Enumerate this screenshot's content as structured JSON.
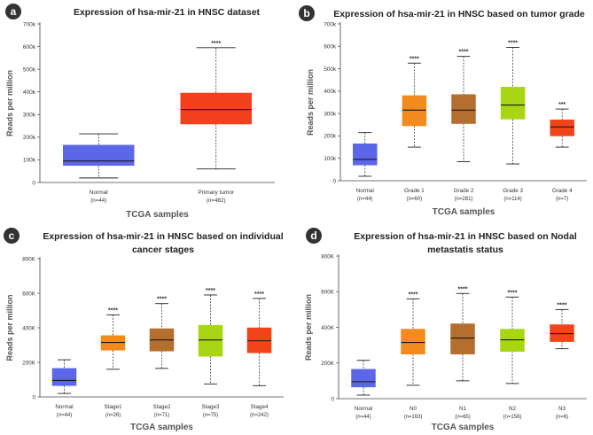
{
  "colors": {
    "normal": "#5B67E8",
    "primary": "#F2411C",
    "orange": "#F28A1E",
    "brown": "#B46E2E",
    "lime": "#A8D612",
    "red": "#F2441B",
    "axis": "#444444",
    "badge": "#333333"
  },
  "chart_data": [
    {
      "type": "box",
      "panel_label": "a",
      "title": [
        "Expression of hsa-mir-21 in HNSC dataset"
      ],
      "xlabel": "TCGA samples",
      "ylabel": "Reads per million",
      "ylim": [
        0,
        700000
      ],
      "yticks": [
        0,
        100000,
        200000,
        300000,
        400000,
        500000,
        600000,
        700000
      ],
      "ytick_labels": [
        "0",
        "100k",
        "200k",
        "300k",
        "400k",
        "500k",
        "600k",
        "700k"
      ],
      "groups": [
        {
          "label": "Normal",
          "n": "(n=44)",
          "color": "normal",
          "whisker_low": 20000,
          "q1": 75000,
          "median": 95000,
          "q3": 165000,
          "whisker_high": 215000,
          "sig": ""
        },
        {
          "label": "Primary tumor",
          "n": "(n=482)",
          "color": "primary",
          "whisker_low": 60000,
          "q1": 258000,
          "median": 322000,
          "q3": 395000,
          "whisker_high": 595000,
          "sig": "****"
        }
      ]
    },
    {
      "type": "box",
      "panel_label": "b",
      "title": [
        "Expression of hsa-mir-21 in HNSC based on tumor grade"
      ],
      "xlabel": "TCGA samples",
      "ylabel": "Reads per million",
      "ylim": [
        0,
        700000
      ],
      "yticks": [
        0,
        100000,
        200000,
        300000,
        400000,
        500000,
        600000,
        700000
      ],
      "ytick_labels": [
        "0",
        "100k",
        "200k",
        "300k",
        "400k",
        "500k",
        "600k",
        "700k"
      ],
      "groups": [
        {
          "label": "Normal",
          "n": "(n=44)",
          "color": "normal",
          "whisker_low": 20000,
          "q1": 70000,
          "median": 95000,
          "q3": 165000,
          "whisker_high": 215000,
          "sig": ""
        },
        {
          "label": "Grade 1",
          "n": "(n=60)",
          "color": "orange",
          "whisker_low": 150000,
          "q1": 245000,
          "median": 315000,
          "q3": 380000,
          "whisker_high": 525000,
          "sig": "****"
        },
        {
          "label": "Grade 2",
          "n": "(n=281)",
          "color": "brown",
          "whisker_low": 85000,
          "q1": 255000,
          "median": 315000,
          "q3": 385000,
          "whisker_high": 555000,
          "sig": "****"
        },
        {
          "label": "Grade 3",
          "n": "(n=114)",
          "color": "lime",
          "whisker_low": 75000,
          "q1": 275000,
          "median": 338000,
          "q3": 418000,
          "whisker_high": 595000,
          "sig": "****"
        },
        {
          "label": "Grade 4",
          "n": "(n=7)",
          "color": "red",
          "whisker_low": 150000,
          "q1": 200000,
          "median": 240000,
          "q3": 272000,
          "whisker_high": 320000,
          "sig": "***"
        }
      ]
    },
    {
      "type": "box",
      "panel_label": "c",
      "title": [
        "Expression of hsa-mir-21 in HNSC based on individual",
        "cancer stages"
      ],
      "xlabel": "TCGA samples",
      "ylabel": "Reads per million",
      "ylim": [
        0,
        800000
      ],
      "yticks": [
        0,
        200000,
        400000,
        600000,
        800000
      ],
      "ytick_labels": [
        "0",
        "200K",
        "400K",
        "600K",
        "800K"
      ],
      "groups": [
        {
          "label": "Normal",
          "n": "(n=44)",
          "color": "normal",
          "whisker_low": 20000,
          "q1": 65000,
          "median": 95000,
          "q3": 165000,
          "whisker_high": 215000,
          "sig": ""
        },
        {
          "label": "Stage1",
          "n": "(n=26)",
          "color": "orange",
          "whisker_low": 160000,
          "q1": 270000,
          "median": 315000,
          "q3": 355000,
          "whisker_high": 475000,
          "sig": "****"
        },
        {
          "label": "Stage2",
          "n": "(n=71)",
          "color": "brown",
          "whisker_low": 165000,
          "q1": 265000,
          "median": 330000,
          "q3": 395000,
          "whisker_high": 540000,
          "sig": "****"
        },
        {
          "label": "Stage3",
          "n": "(n=75)",
          "color": "lime",
          "whisker_low": 75000,
          "q1": 235000,
          "median": 330000,
          "q3": 415000,
          "whisker_high": 590000,
          "sig": "****"
        },
        {
          "label": "Stage4",
          "n": "(n=242)",
          "color": "red",
          "whisker_low": 65000,
          "q1": 255000,
          "median": 325000,
          "q3": 400000,
          "whisker_high": 570000,
          "sig": "****"
        }
      ]
    },
    {
      "type": "box",
      "panel_label": "d",
      "title": [
        "Expression of hsa-mir-21 in HNSC based on Nodal",
        "metastatis status"
      ],
      "xlabel": "TCGA samples",
      "ylabel": "Reads per million",
      "ylim": [
        0,
        800000
      ],
      "yticks": [
        0,
        200000,
        400000,
        600000,
        800000
      ],
      "ytick_labels": [
        "0",
        "200K",
        "400K",
        "600K",
        "800K"
      ],
      "groups": [
        {
          "label": "Normal",
          "n": "(n=44)",
          "color": "normal",
          "whisker_low": 20000,
          "q1": 65000,
          "median": 95000,
          "q3": 165000,
          "whisker_high": 215000,
          "sig": ""
        },
        {
          "label": "N0",
          "n": "(n=163)",
          "color": "orange",
          "whisker_low": 75000,
          "q1": 250000,
          "median": 315000,
          "q3": 390000,
          "whisker_high": 560000,
          "sig": "****"
        },
        {
          "label": "N1",
          "n": "(n=65)",
          "color": "brown",
          "whisker_low": 100000,
          "q1": 250000,
          "median": 340000,
          "q3": 420000,
          "whisker_high": 590000,
          "sig": "****"
        },
        {
          "label": "N2",
          "n": "(n=156)",
          "color": "lime",
          "whisker_low": 85000,
          "q1": 265000,
          "median": 330000,
          "q3": 390000,
          "whisker_high": 570000,
          "sig": "****"
        },
        {
          "label": "N3",
          "n": "(n=6)",
          "color": "red",
          "whisker_low": 280000,
          "q1": 320000,
          "median": 365000,
          "q3": 415000,
          "whisker_high": 500000,
          "sig": "****"
        }
      ]
    }
  ]
}
